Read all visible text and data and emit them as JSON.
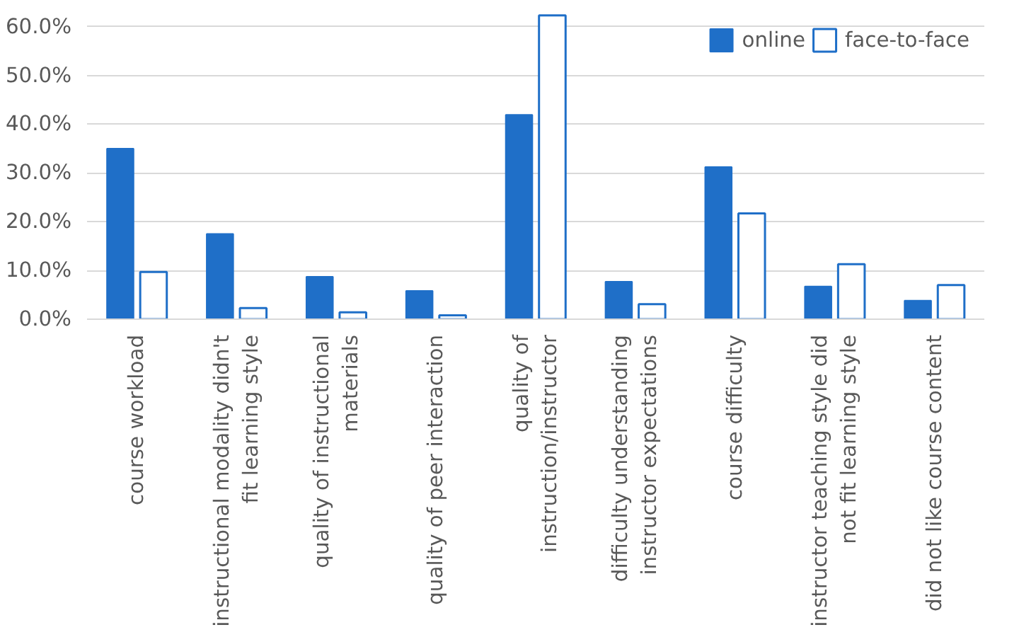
{
  "chart_data": {
    "type": "bar",
    "categories": [
      "course workload",
      "instructional modality didn't\nfit learning style",
      "quality of instructional\nmaterials",
      "quality of peer interaction",
      "quality of\ninstruction/instructor",
      "difficulty understanding\ninstructor expectations",
      "course difficulty",
      "instructor teaching style did\nnot fit learning style",
      "did not like course content"
    ],
    "series": [
      {
        "name": "online",
        "color": "#1f6fc8",
        "values": [
          35.0,
          17.5,
          8.7,
          5.8,
          41.9,
          7.7,
          31.2,
          6.7,
          3.8
        ]
      },
      {
        "name": "face-to-face",
        "color": "#1f6fc8",
        "values": [
          9.7,
          2.3,
          1.4,
          0.8,
          62.3,
          3.1,
          21.7,
          11.3,
          7.0
        ]
      }
    ],
    "ylim": [
      0,
      63
    ],
    "yticks": [
      {
        "value": 0,
        "label": "0.0%"
      },
      {
        "value": 10,
        "label": "10.0%"
      },
      {
        "value": 20,
        "label": "20.0%"
      },
      {
        "value": 30,
        "label": "30.0%"
      },
      {
        "value": 40,
        "label": "40.0%"
      },
      {
        "value": 50,
        "label": "50.0%"
      },
      {
        "value": 60,
        "label": "60.0%"
      }
    ],
    "grid": "y",
    "legend": "top right"
  }
}
